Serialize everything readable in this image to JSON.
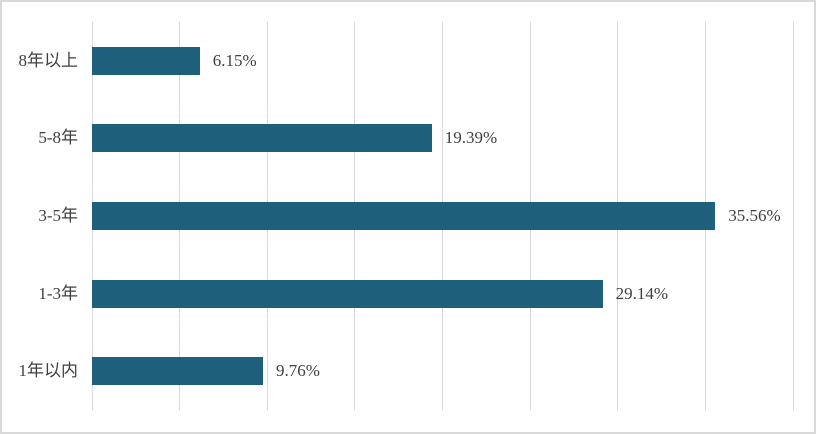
{
  "chart_data": {
    "type": "bar",
    "orientation": "horizontal",
    "title": "",
    "xlabel": "",
    "ylabel": "",
    "categories": [
      "8年以上",
      "5-8年",
      "3-5年",
      "1-3年",
      "1年以内"
    ],
    "values": [
      6.15,
      19.39,
      35.56,
      29.14,
      9.76
    ],
    "value_labels": [
      "6.15%",
      "19.39%",
      "35.56%",
      "29.14%",
      "9.76%"
    ],
    "xlim": [
      0,
      40
    ],
    "grid_interval": 5,
    "grid": true,
    "legend": false,
    "colors": {
      "bar": "#1E5F7C",
      "gridline": "#D9D9D9",
      "frame_border": "#D9D9D9",
      "text": "#404040",
      "background": "#FFFFFF"
    }
  }
}
